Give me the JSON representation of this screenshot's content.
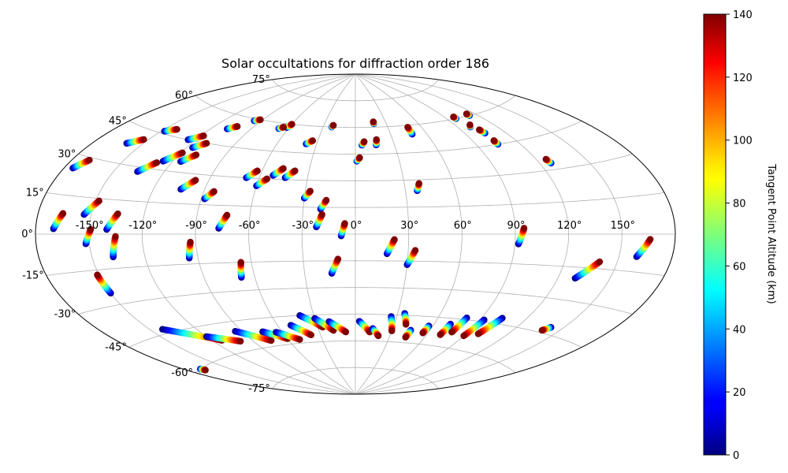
{
  "chart_data": {
    "type": "scatter",
    "projection": "aitoff",
    "title": "Solar occultations for diffraction order 186",
    "longitude_ticks": [
      {
        "value": -150,
        "label": "-150°"
      },
      {
        "value": -120,
        "label": "-120°"
      },
      {
        "value": -90,
        "label": "-90°"
      },
      {
        "value": -60,
        "label": "-60°"
      },
      {
        "value": -30,
        "label": "-30°"
      },
      {
        "value": 0,
        "label": "0°"
      },
      {
        "value": 30,
        "label": "30°"
      },
      {
        "value": 60,
        "label": "60°"
      },
      {
        "value": 90,
        "label": "90°"
      },
      {
        "value": 120,
        "label": "120°"
      },
      {
        "value": 150,
        "label": "150°"
      }
    ],
    "latitude_ticks": [
      {
        "value": 75,
        "label": "75°"
      },
      {
        "value": 60,
        "label": "60°"
      },
      {
        "value": 45,
        "label": "45°"
      },
      {
        "value": 30,
        "label": "30°"
      },
      {
        "value": 15,
        "label": "15°"
      },
      {
        "value": 0,
        "label": "0°"
      },
      {
        "value": -15,
        "label": "-15°"
      },
      {
        "value": -30,
        "label": "-30°"
      },
      {
        "value": -45,
        "label": "-45°"
      },
      {
        "value": -60,
        "label": "-60°"
      },
      {
        "value": -75,
        "label": "-75°"
      }
    ],
    "colorbar": {
      "label": "Tangent Point Altitude (km)",
      "colormap": "jet",
      "range": [
        0,
        140
      ],
      "ticks": [
        {
          "value": 0,
          "label": "0"
        },
        {
          "value": 20,
          "label": "20"
        },
        {
          "value": 40,
          "label": "40"
        },
        {
          "value": 60,
          "label": "60"
        },
        {
          "value": 80,
          "label": "80"
        },
        {
          "value": 100,
          "label": "100"
        },
        {
          "value": 120,
          "label": "120"
        },
        {
          "value": 140,
          "label": "140"
        }
      ]
    },
    "altitude_range_km": [
      0,
      140
    ],
    "tracks": [
      {
        "lon0": -175,
        "lat0": 25,
        "lon1": -170,
        "lat1": 29
      },
      {
        "lon0": -160,
        "lat0": 38,
        "lon1": -153,
        "lat1": 41
      },
      {
        "lon0": -148,
        "lat0": 46,
        "lon1": -142,
        "lat1": 48
      },
      {
        "lon0": -136,
        "lat0": 28,
        "lon1": -129,
        "lat1": 33
      },
      {
        "lon0": -126,
        "lat0": 34,
        "lon1": -119,
        "lat1": 39
      },
      {
        "lon0": -125,
        "lat0": 45,
        "lon1": -118,
        "lat1": 48
      },
      {
        "lon0": -115,
        "lat0": 35,
        "lon1": -109,
        "lat1": 39
      },
      {
        "lon0": -116,
        "lat0": 42,
        "lon1": -110,
        "lat1": 45
      },
      {
        "lon0": -104,
        "lat0": 22,
        "lon1": -98,
        "lat1": 27
      },
      {
        "lon0": -108,
        "lat0": 53,
        "lon1": -103,
        "lat1": 55
      },
      {
        "lon0": -88,
        "lat0": 18,
        "lon1": -84,
        "lat1": 22
      },
      {
        "lon0": -96,
        "lat0": 59,
        "lon1": -92,
        "lat1": 60
      },
      {
        "lon0": -68,
        "lat0": 30,
        "lon1": -63,
        "lat1": 34
      },
      {
        "lon0": -60,
        "lat0": 26,
        "lon1": -55,
        "lat1": 30
      },
      {
        "lon0": -52,
        "lat0": 32,
        "lon1": -47,
        "lat1": 36
      },
      {
        "lon0": -44,
        "lat0": 31,
        "lon1": -39,
        "lat1": 35
      },
      {
        "lon0": -38,
        "lat0": 50,
        "lon1": -34,
        "lat1": 52
      },
      {
        "lon0": -62,
        "lat0": 58,
        "lon1": -60,
        "lat1": 60
      },
      {
        "lon0": -68,
        "lat0": 57,
        "lon1": -65,
        "lat1": 58
      },
      {
        "lon0": -30,
        "lat0": 20,
        "lon1": -27,
        "lat1": 24
      },
      {
        "lon0": -20,
        "lat0": 14,
        "lon1": -17,
        "lat1": 19
      },
      {
        "lon0": -22,
        "lat0": 60,
        "lon1": -21,
        "lat1": 61
      },
      {
        "lon0": 1,
        "lat0": 41,
        "lon1": 3,
        "lat1": 43
      },
      {
        "lon0": 5,
        "lat0": 50,
        "lon1": 7,
        "lat1": 52
      },
      {
        "lon0": 16,
        "lat0": 50,
        "lon1": 17,
        "lat1": 53
      },
      {
        "lon0": 18,
        "lat0": 62,
        "lon1": 18,
        "lat1": 63
      },
      {
        "lon0": 37,
        "lat0": 24,
        "lon1": 39,
        "lat1": 28
      },
      {
        "lon0": 48,
        "lat0": 55,
        "lon1": 48,
        "lat1": 59
      },
      {
        "lon0": 100,
        "lat0": 55,
        "lon1": 102,
        "lat1": 56
      },
      {
        "lon0": 98,
        "lat0": 60,
        "lon1": 98,
        "lat1": 61
      },
      {
        "lon0": 105,
        "lat0": 45,
        "lon1": 105,
        "lat1": 47
      },
      {
        "lon0": 113,
        "lat0": 60,
        "lon1": 113,
        "lat1": 61
      },
      {
        "lon0": 127,
        "lat0": 33,
        "lon1": 126,
        "lat1": 35
      },
      {
        "lon0": 105,
        "lat0": 51,
        "lon1": 104,
        "lat1": 53
      },
      {
        "lon0": -170,
        "lat0": 2,
        "lon1": -166,
        "lat1": 8
      },
      {
        "lon0": -154,
        "lat0": 8,
        "lon1": -148,
        "lat1": 14
      },
      {
        "lon0": -140,
        "lat0": 2,
        "lon1": -135,
        "lat1": 9
      },
      {
        "lon0": -152,
        "lat0": -4,
        "lon1": -149,
        "lat1": 2
      },
      {
        "lon0": -138,
        "lat0": -10,
        "lon1": -135,
        "lat1": -1
      },
      {
        "lon0": -150,
        "lat0": -25,
        "lon1": -151,
        "lat1": -17
      },
      {
        "lon0": -95,
        "lat0": -12,
        "lon1": -93,
        "lat1": -4
      },
      {
        "lon0": -77,
        "lat0": 3,
        "lon1": -73,
        "lat1": 10
      },
      {
        "lon0": -68,
        "lat0": -23,
        "lon1": -66,
        "lat1": -15
      },
      {
        "lon0": -22,
        "lat0": 4,
        "lon1": -19,
        "lat1": 11
      },
      {
        "lon0": -8,
        "lat0": -1,
        "lon1": -6,
        "lat1": 6
      },
      {
        "lon0": -14,
        "lat0": -22,
        "lon1": -10,
        "lat1": -14
      },
      {
        "lon0": 18,
        "lat0": -11,
        "lon1": 22,
        "lat1": -3
      },
      {
        "lon0": 30,
        "lat0": -17,
        "lon1": 34,
        "lat1": -9
      },
      {
        "lon0": 92,
        "lat0": -5,
        "lon1": 95,
        "lat1": 3
      },
      {
        "lon0": 130,
        "lat0": -20,
        "lon1": 140,
        "lat1": -12
      },
      {
        "lon0": 160,
        "lat0": -9,
        "lon1": 166,
        "lat1": -2
      },
      {
        "lon0": -142,
        "lat0": -43,
        "lon1": -113,
        "lat1": -53
      },
      {
        "lon0": -120,
        "lat0": -50,
        "lon1": -100,
        "lat1": -55
      },
      {
        "lon0": -95,
        "lat0": -50,
        "lon1": -75,
        "lat1": -57
      },
      {
        "lon0": -75,
        "lat0": -52,
        "lon1": -60,
        "lat1": -57
      },
      {
        "lon0": -65,
        "lat0": -53,
        "lon1": -50,
        "lat1": -58
      },
      {
        "lon0": -50,
        "lat0": -50,
        "lon1": -38,
        "lat1": -56
      },
      {
        "lon0": -40,
        "lat0": -45,
        "lon1": -26,
        "lat1": -52
      },
      {
        "lon0": -30,
        "lat0": -47,
        "lon1": -18,
        "lat1": -54
      },
      {
        "lon0": -20,
        "lat0": -49,
        "lon1": -8,
        "lat1": -55
      },
      {
        "lon0": 3,
        "lat0": -49,
        "lon1": 12,
        "lat1": -55
      },
      {
        "lon0": 14,
        "lat0": -53,
        "lon1": 20,
        "lat1": -57
      },
      {
        "lon0": 26,
        "lat0": -46,
        "lon1": 30,
        "lat1": -54
      },
      {
        "lon0": 35,
        "lat0": -44,
        "lon1": 39,
        "lat1": -50
      },
      {
        "lon0": 45,
        "lat0": -53,
        "lon1": 44,
        "lat1": -57
      },
      {
        "lon0": 57,
        "lat0": -50,
        "lon1": 56,
        "lat1": -54
      },
      {
        "lon0": 72,
        "lat0": -48,
        "lon1": 71,
        "lat1": -54
      },
      {
        "lon0": 80,
        "lat0": -44,
        "lon1": 78,
        "lat1": -52
      },
      {
        "lon0": 93,
        "lat0": -44,
        "lon1": 90,
        "lat1": -53
      },
      {
        "lon0": 104,
        "lat0": -42,
        "lon1": 99,
        "lat1": -51
      },
      {
        "lon0": 142,
        "lat0": -42,
        "lon1": 139,
        "lat1": -44
      },
      {
        "lon0": -170,
        "lat0": -60,
        "lon1": -169,
        "lat1": -61
      }
    ]
  }
}
